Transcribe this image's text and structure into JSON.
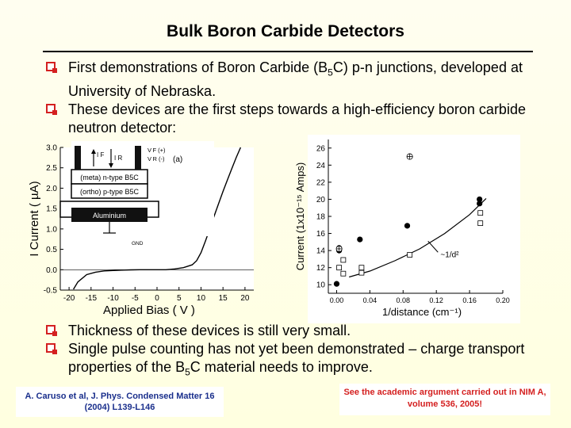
{
  "title": "Bulk Boron Carbide Detectors",
  "bullets_top": [
    {
      "pre": "First demonstrations of Boron Carbide (B",
      "sub": "5",
      "post": "C) p-n junctions, developed at University of Nebraska."
    },
    {
      "pre": "These devices are the first steps towards a high-efficiency boron carbide neutron detector:",
      "sub": "",
      "post": ""
    }
  ],
  "bullets_bottom": [
    {
      "pre": "Thickness of these devices is still very small.",
      "sub": "",
      "post": ""
    },
    {
      "pre": "Single pulse counting has not yet been demonstrated – charge transport properties of the B",
      "sub": "5",
      "post": "C material needs to improve."
    }
  ],
  "citation": "A. Caruso et al, J. Phys. Condensed Matter 16 (2004) L139-L146",
  "note": "See the academic argument carried out in NIM A, volume 536, 2005!",
  "inset": {
    "vf": "V F (+)",
    "vr": "V R (-)",
    "if": "I F",
    "ir": "I R",
    "panel": "(a)",
    "meta": "(meta) n-type B5C",
    "ortho": "(ortho) p-type B5C",
    "aluminium": "Aluminium",
    "gnd": "GND"
  },
  "chart_data": [
    {
      "type": "line",
      "xlabel": "Applied Bias ( V )",
      "ylabel": "I Current ( µA)",
      "xlim": [
        -22,
        22
      ],
      "ylim": [
        -0.5,
        3.0
      ],
      "xticks": [
        -20,
        -15,
        -10,
        -5,
        0,
        5,
        10,
        15,
        20
      ],
      "yticks": [
        -0.5,
        0.0,
        0.5,
        1.0,
        1.5,
        2.0,
        2.5,
        3.0
      ],
      "x": [
        -19,
        -18,
        -16,
        -14,
        -12,
        -10,
        -8,
        -6,
        -4,
        -2,
        0,
        2,
        4,
        6,
        8,
        9,
        10,
        11,
        12,
        13,
        14,
        15,
        16,
        17,
        18,
        19
      ],
      "y": [
        -0.48,
        -0.3,
        -0.12,
        -0.06,
        -0.03,
        -0.02,
        -0.01,
        -0.005,
        0.0,
        0.0,
        0.0,
        0.0,
        0.02,
        0.05,
        0.12,
        0.22,
        0.42,
        0.7,
        1.0,
        1.32,
        1.62,
        1.92,
        2.2,
        2.48,
        2.75,
        3.0
      ]
    },
    {
      "type": "scatter",
      "xlabel": "1/distance (cm⁻¹)",
      "ylabel": "Current (1x10⁻¹⁵ Amps)",
      "xlim": [
        -0.01,
        0.2
      ],
      "ylim": [
        9,
        27
      ],
      "xticks": [
        0.0,
        0.04,
        0.08,
        0.12,
        0.16,
        0.2
      ],
      "xtick_labels": [
        "0.00",
        "0.04",
        "0.08",
        "0.12",
        "0.16",
        "0.20"
      ],
      "yticks": [
        10,
        12,
        14,
        16,
        18,
        20,
        22,
        24,
        26
      ],
      "fit_label": "~1/d²",
      "series": [
        {
          "marker": "filled-circle",
          "x": [
            0.0,
            0.003,
            0.003,
            0.028,
            0.085,
            0.172,
            0.172
          ],
          "y": [
            10.1,
            14.3,
            14.0,
            15.3,
            16.9,
            20.0,
            19.5
          ]
        },
        {
          "marker": "open-square",
          "x": [
            0.003,
            0.008,
            0.008,
            0.03,
            0.03,
            0.088,
            0.173,
            0.173
          ],
          "y": [
            12.0,
            12.9,
            11.3,
            12.0,
            11.4,
            13.5,
            18.4,
            17.2
          ]
        },
        {
          "marker": "crossed-circle",
          "x": [
            0.003,
            0.088
          ],
          "y": [
            14.2,
            25.0
          ]
        }
      ],
      "fit": {
        "x": [
          0.015,
          0.04,
          0.07,
          0.1,
          0.13,
          0.16,
          0.18
        ],
        "y": [
          10.9,
          11.6,
          12.8,
          14.2,
          16.0,
          18.2,
          20.1
        ]
      }
    }
  ]
}
